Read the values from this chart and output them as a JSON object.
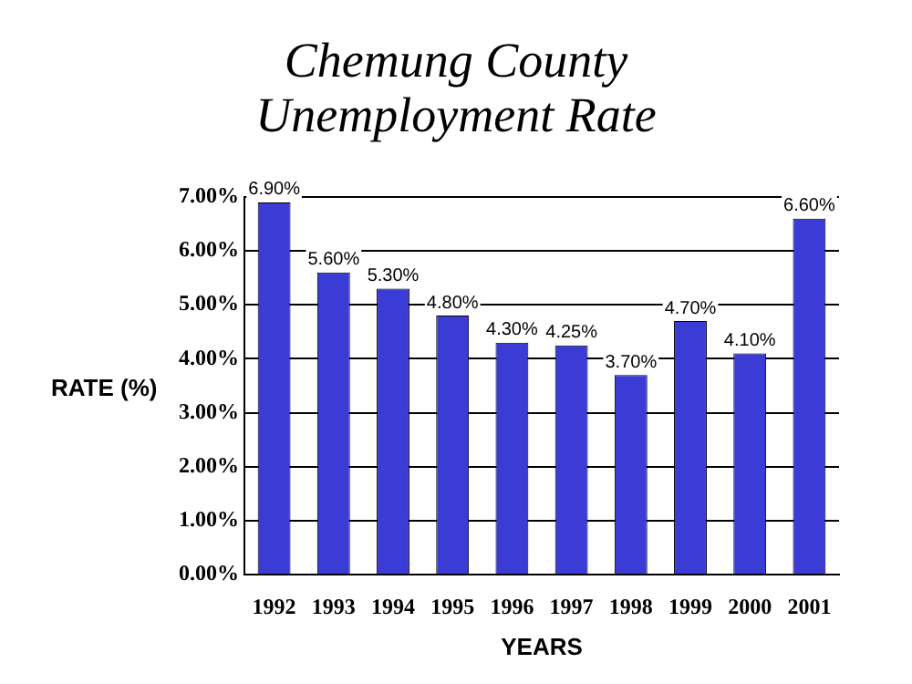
{
  "chart_data": {
    "type": "bar",
    "title": "Chemung County Unemployment Rate",
    "xlabel": "YEARS",
    "ylabel": "RATE (%)",
    "categories": [
      "1992",
      "1993",
      "1994",
      "1995",
      "1996",
      "1997",
      "1998",
      "1999",
      "2000",
      "2001"
    ],
    "values": [
      6.9,
      5.6,
      5.3,
      4.8,
      4.3,
      4.25,
      3.7,
      4.7,
      4.1,
      6.6
    ],
    "value_labels": [
      "6.90%",
      "5.60%",
      "5.30%",
      "4.80%",
      "4.30%",
      "4.25%",
      "3.70%",
      "4.70%",
      "4.10%",
      "6.60%"
    ],
    "color": "#3b3bd6",
    "ylim": [
      0,
      7
    ],
    "yticks": [
      {
        "value": 0,
        "label": "0.00%"
      },
      {
        "value": 1,
        "label": "1.00%"
      },
      {
        "value": 2,
        "label": "2.00%"
      },
      {
        "value": 3,
        "label": "3.00%"
      },
      {
        "value": 4,
        "label": "4.00%"
      },
      {
        "value": 5,
        "label": "5.00%"
      },
      {
        "value": 6,
        "label": "6.00%"
      },
      {
        "value": 7,
        "label": "7.00%"
      }
    ],
    "grid": "y",
    "legend": false
  }
}
